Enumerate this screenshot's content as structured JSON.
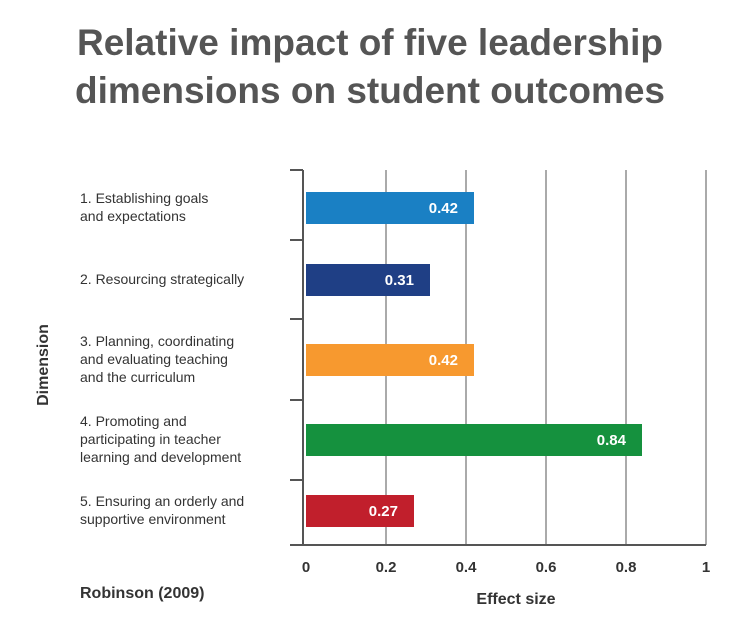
{
  "chart_data": {
    "type": "bar",
    "orientation": "horizontal",
    "title": [
      "Relative impact of five leadership",
      "dimensions on student outcomes"
    ],
    "y_label": "Dimension",
    "x_label": "Effect size",
    "source": "Robinson (2009)",
    "categories": [
      "1. Establishing goals\nand expectations",
      "2. Resourcing strategically",
      "3. Planning, coordinating\nand evaluating teaching\nand the curriculum",
      "4. Promoting and\nparticipating in teacher\nlearning and development",
      "5. Ensuring an orderly and\nsupportive environment"
    ],
    "values": [
      0.42,
      0.31,
      0.42,
      0.84,
      0.27
    ],
    "colors": [
      "#1a80c4",
      "#1f3f85",
      "#f7992f",
      "#15913e",
      "#c11f2c"
    ],
    "xlim": [
      0,
      1
    ],
    "xticks": [
      0,
      0.2,
      0.4,
      0.6,
      0.8,
      1
    ],
    "grid": true
  }
}
